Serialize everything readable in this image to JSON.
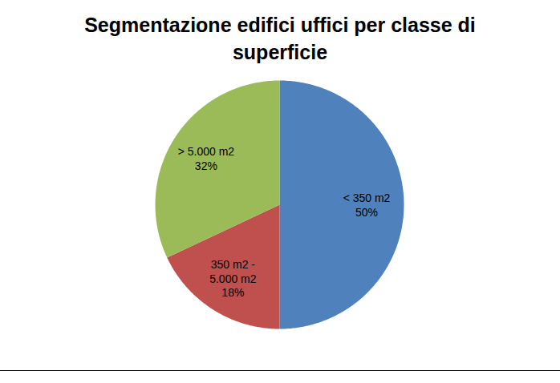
{
  "chart_data": {
    "type": "pie",
    "title": "Segmentazione edifici uffici per classe di superficie",
    "categories": [
      "< 350 m2",
      "350 m2 - 5.000 m2",
      "> 5.000 m2"
    ],
    "values": [
      50,
      18,
      32
    ],
    "value_labels": [
      "50%",
      "18%",
      "32%"
    ],
    "colors": [
      "#4f81bd",
      "#c0504d",
      "#9bbb59"
    ],
    "data_labels": true
  }
}
